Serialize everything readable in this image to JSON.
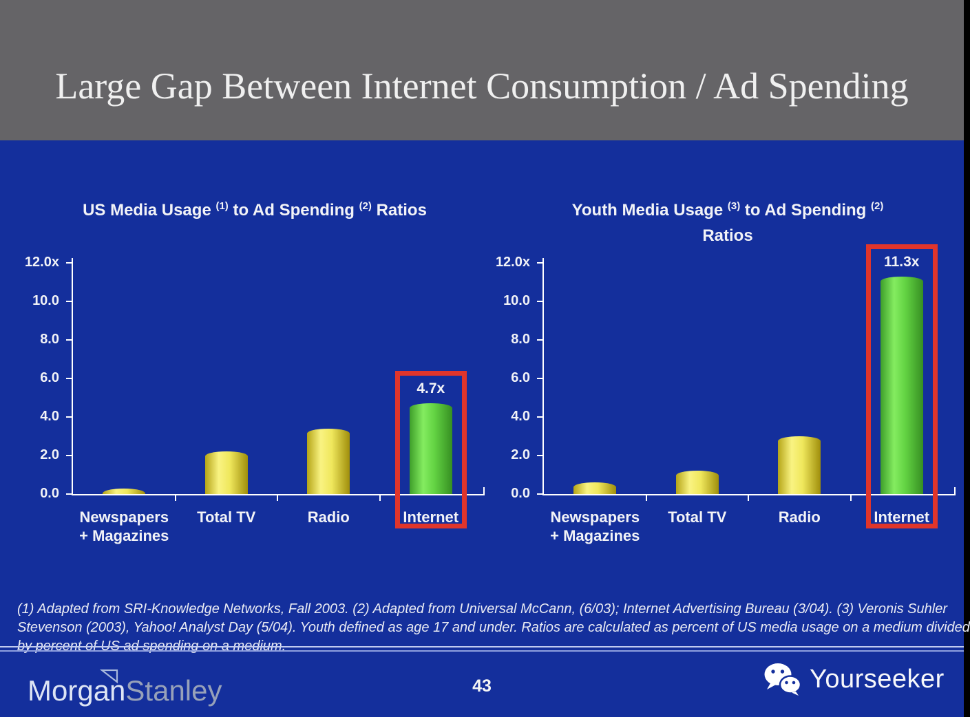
{
  "slide": {
    "title": "Large Gap Between Internet Consumption / Ad Spending",
    "footnote_lines": [
      "(1) Adapted from SRI-Knowledge Networks, Fall 2003.  (2) Adapted from Universal McCann, (6/03); Internet Advertising Bureau (3/04). (3) Veronis Suhler",
      "Stevenson (2003), Yahoo! Analyst Day (5/04).  Youth defined as age 17 and under.  Ratios are calculated as percent of US media usage on a medium divided",
      "by percent of US ad spending on a medium."
    ]
  },
  "footer": {
    "brand_part1": "Morgan",
    "brand_part2": "Stanley",
    "page_number": "43",
    "watermark": "Yourseeker"
  },
  "colors": {
    "slide_background": "#142F9C",
    "header_background": "#656467",
    "title_text": "#F0F0F0",
    "chart_text": "#F2F3F7",
    "axis": "#FFFFFF",
    "highlight_box": "#E0352B",
    "yellow_bar": [
      "#B5A517",
      "#F9F382",
      "#EFE75C",
      "#9F8E0B"
    ],
    "green_bar": [
      "#3E9E2A",
      "#84EC60",
      "#63D343",
      "#368F22"
    ],
    "brand_morgan": "#DDE4F4",
    "brand_stanley": "#97A1B9"
  },
  "chart_data": [
    {
      "type": "bar",
      "title_plain": "US Media Usage (1) to Ad Spending (2) Ratios",
      "title_segments": [
        {
          "text": "US Media Usage "
        },
        {
          "sup": "(1)"
        },
        {
          "text": " to Ad Spending "
        },
        {
          "sup": "(2)"
        },
        {
          "text": " Ratios"
        }
      ],
      "categories": [
        [
          "Newspapers",
          "+ Magazines"
        ],
        [
          "Total TV"
        ],
        [
          "Radio"
        ],
        [
          "Internet"
        ]
      ],
      "values": [
        0.3,
        2.2,
        3.4,
        4.7
      ],
      "bar_colors": [
        "yellow",
        "yellow",
        "yellow",
        "green"
      ],
      "highlight": {
        "index": 3,
        "label": "4.7x"
      },
      "yticks": [
        {
          "v": 12,
          "label": "12.0x"
        },
        {
          "v": 10,
          "label": "10.0"
        },
        {
          "v": 8,
          "label": "8.0"
        },
        {
          "v": 6,
          "label": "6.0"
        },
        {
          "v": 4,
          "label": "4.0"
        },
        {
          "v": 2,
          "label": "2.0"
        },
        {
          "v": 0,
          "label": "0.0"
        }
      ],
      "ylim": [
        0,
        12
      ],
      "xlabel": "",
      "ylabel": "",
      "grid": false,
      "legend": null
    },
    {
      "type": "bar",
      "title_plain": "Youth Media Usage (3) to Ad Spending (2) Ratios",
      "title_segments": [
        {
          "text": "Youth Media Usage "
        },
        {
          "sup": "(3)"
        },
        {
          "text": " to Ad Spending "
        },
        {
          "sup": "(2)"
        },
        {
          "br": true
        },
        {
          "text": "Ratios"
        }
      ],
      "categories": [
        [
          "Newspapers",
          "+ Magazines"
        ],
        [
          "Total TV"
        ],
        [
          "Radio"
        ],
        [
          "Internet"
        ]
      ],
      "values": [
        0.6,
        1.2,
        3.0,
        11.3
      ],
      "bar_colors": [
        "yellow",
        "yellow",
        "yellow",
        "green"
      ],
      "highlight": {
        "index": 3,
        "label": "11.3x"
      },
      "yticks": [
        {
          "v": 12,
          "label": "12.0x"
        },
        {
          "v": 10,
          "label": "10.0"
        },
        {
          "v": 8,
          "label": "8.0"
        },
        {
          "v": 6,
          "label": "6.0"
        },
        {
          "v": 4,
          "label": "4.0"
        },
        {
          "v": 2,
          "label": "2.0"
        },
        {
          "v": 0,
          "label": "0.0"
        }
      ],
      "ylim": [
        0,
        12
      ],
      "xlabel": "",
      "ylabel": "",
      "grid": false,
      "legend": null
    }
  ]
}
